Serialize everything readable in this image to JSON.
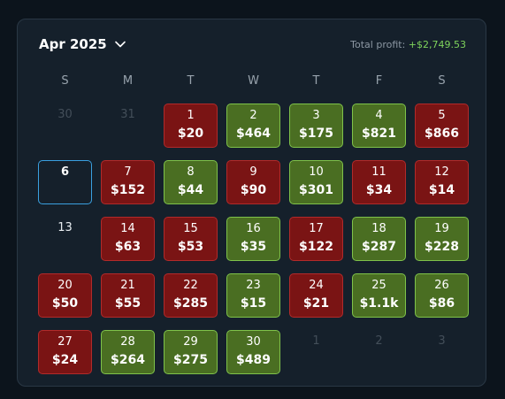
{
  "header": {
    "month_label": "Apr 2025",
    "total_label": "Total profit:",
    "total_value": "+$2,749.53"
  },
  "colors": {
    "loss": "#7a1414",
    "profit": "#4a6e22",
    "today_border": "#3aa0e0",
    "positive_text": "#7ed35c"
  },
  "icons": {
    "month_dropdown": "chevron-down-icon"
  },
  "weekdays": [
    "S",
    "M",
    "T",
    "W",
    "T",
    "F",
    "S"
  ],
  "days": [
    {
      "day": "30",
      "amount": "",
      "status": "muted"
    },
    {
      "day": "31",
      "amount": "",
      "status": "muted"
    },
    {
      "day": "1",
      "amount": "$20",
      "status": "loss"
    },
    {
      "day": "2",
      "amount": "$464",
      "status": "profit"
    },
    {
      "day": "3",
      "amount": "$175",
      "status": "profit"
    },
    {
      "day": "4",
      "amount": "$821",
      "status": "profit"
    },
    {
      "day": "5",
      "amount": "$866",
      "status": "loss"
    },
    {
      "day": "6",
      "amount": "",
      "status": "today"
    },
    {
      "day": "7",
      "amount": "$152",
      "status": "loss"
    },
    {
      "day": "8",
      "amount": "$44",
      "status": "profit"
    },
    {
      "day": "9",
      "amount": "$90",
      "status": "loss"
    },
    {
      "day": "10",
      "amount": "$301",
      "status": "profit"
    },
    {
      "day": "11",
      "amount": "$34",
      "status": "loss"
    },
    {
      "day": "12",
      "amount": "$14",
      "status": "loss"
    },
    {
      "day": "13",
      "amount": "",
      "status": "plain"
    },
    {
      "day": "14",
      "amount": "$63",
      "status": "loss"
    },
    {
      "day": "15",
      "amount": "$53",
      "status": "loss"
    },
    {
      "day": "16",
      "amount": "$35",
      "status": "profit"
    },
    {
      "day": "17",
      "amount": "$122",
      "status": "loss"
    },
    {
      "day": "18",
      "amount": "$287",
      "status": "profit"
    },
    {
      "day": "19",
      "amount": "$228",
      "status": "profit"
    },
    {
      "day": "20",
      "amount": "$50",
      "status": "loss"
    },
    {
      "day": "21",
      "amount": "$55",
      "status": "loss"
    },
    {
      "day": "22",
      "amount": "$285",
      "status": "loss"
    },
    {
      "day": "23",
      "amount": "$15",
      "status": "profit"
    },
    {
      "day": "24",
      "amount": "$21",
      "status": "loss"
    },
    {
      "day": "25",
      "amount": "$1.1k",
      "status": "profit"
    },
    {
      "day": "26",
      "amount": "$86",
      "status": "profit"
    },
    {
      "day": "27",
      "amount": "$24",
      "status": "loss"
    },
    {
      "day": "28",
      "amount": "$264",
      "status": "profit"
    },
    {
      "day": "29",
      "amount": "$275",
      "status": "profit"
    },
    {
      "day": "30",
      "amount": "$489",
      "status": "profit"
    },
    {
      "day": "1",
      "amount": "",
      "status": "muted"
    },
    {
      "day": "2",
      "amount": "",
      "status": "muted"
    },
    {
      "day": "3",
      "amount": "",
      "status": "muted"
    }
  ]
}
